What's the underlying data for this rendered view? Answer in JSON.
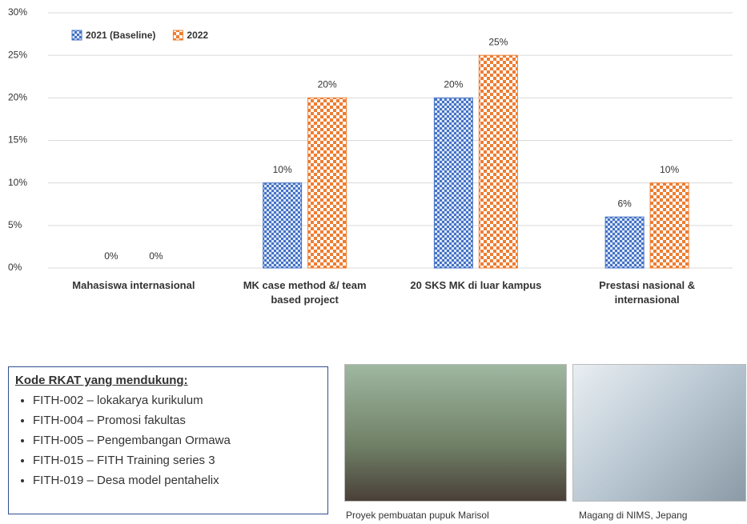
{
  "chart_data": {
    "type": "bar",
    "categories": [
      "Mahasiswa internasional",
      "MK case method &/ team based project",
      "20 SKS MK di luar kampus",
      "Prestasi nasional & internasional"
    ],
    "series": [
      {
        "name": "2021 (Baseline)",
        "color": "#4472c4",
        "values": [
          0,
          10,
          20,
          6
        ],
        "value_labels": [
          "0%",
          "10%",
          "20%",
          "6%"
        ]
      },
      {
        "name": "2022",
        "color": "#ed7d31",
        "values": [
          0,
          20,
          25,
          10
        ],
        "value_labels": [
          "0%",
          "20%",
          "25%",
          "10%"
        ]
      }
    ],
    "ylim": [
      0,
      30
    ],
    "yticks": [
      {
        "value": 0,
        "label": "0%"
      },
      {
        "value": 5,
        "label": "5%"
      },
      {
        "value": 10,
        "label": "10%"
      },
      {
        "value": 15,
        "label": "15%"
      },
      {
        "value": 20,
        "label": "20%"
      },
      {
        "value": 25,
        "label": "25%"
      },
      {
        "value": 30,
        "label": "30%"
      }
    ],
    "grid": true,
    "legend": "top-left"
  },
  "rkat": {
    "title": "Kode RKAT yang mendukung:",
    "items": [
      "FITH-002 – lokakarya kurikulum",
      "FITH-004 – Promosi fakultas",
      "FITH-005 – Pengembangan Ormawa",
      "FITH-015 – FITH Training series 3",
      "FITH-019 – Desa model pentahelix"
    ]
  },
  "photos": [
    {
      "caption": "Proyek pembuatan pupuk Marisol"
    },
    {
      "caption": "Magang di NIMS, Jepang"
    }
  ]
}
